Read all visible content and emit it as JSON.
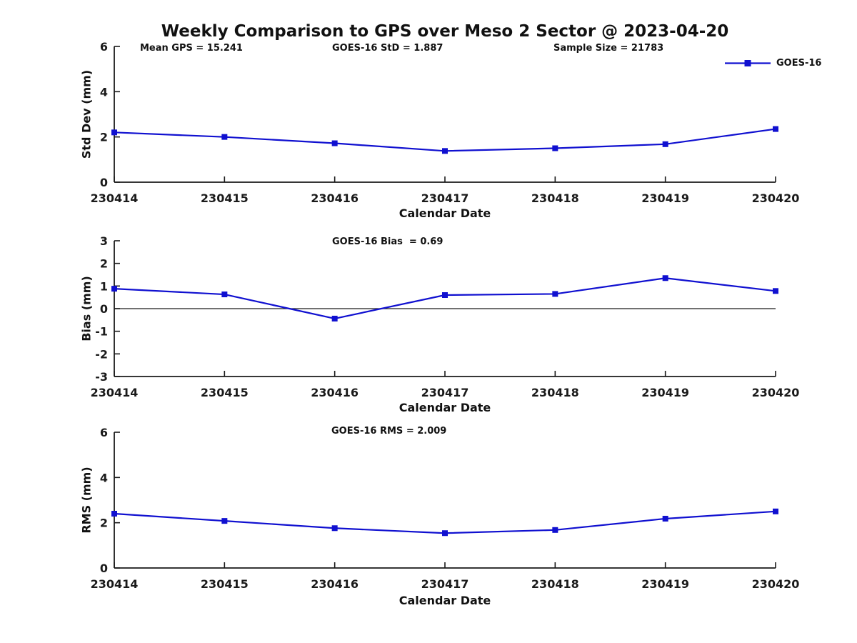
{
  "figure": {
    "title": "Weekly Comparison to GPS over Meso 2 Sector @ 2023-04-20"
  },
  "legend": {
    "label": "GOES-16",
    "position": "top-right-outside"
  },
  "colors": {
    "series": "#1010d0",
    "axis": "#1a1a1a",
    "text": "#1a1a1a",
    "zero_line": "#1a1a1a"
  },
  "chart_data": [
    {
      "id": "std-dev",
      "type": "line",
      "annotations": [
        "Mean GPS = 15.241",
        "GOES-16 StD = 1.887",
        "Sample Size = 21783"
      ],
      "x": [
        "230414",
        "230415",
        "230416",
        "230417",
        "230418",
        "230419",
        "230420"
      ],
      "series": [
        {
          "name": "GOES-16",
          "marker": "square",
          "values": [
            2.2,
            2.0,
            1.72,
            1.38,
            1.5,
            1.68,
            2.35
          ]
        }
      ],
      "xlabel": "Calendar Date",
      "ylabel": "Std Dev (mm)",
      "ylim": [
        0,
        6
      ],
      "yticks": [
        0,
        2,
        4,
        6
      ],
      "grid": false,
      "zero_line": false
    },
    {
      "id": "bias",
      "type": "line",
      "annotations": [
        "GOES-16 Bias  = 0.69"
      ],
      "x": [
        "230414",
        "230415",
        "230416",
        "230417",
        "230418",
        "230419",
        "230420"
      ],
      "series": [
        {
          "name": "GOES-16",
          "marker": "square",
          "values": [
            0.88,
            0.63,
            -0.44,
            0.6,
            0.65,
            1.35,
            0.78
          ]
        }
      ],
      "xlabel": "Calendar Date",
      "ylabel": "Bias (mm)",
      "ylim": [
        -3,
        3
      ],
      "yticks": [
        -3,
        -2,
        -1,
        0,
        1,
        2,
        3
      ],
      "grid": false,
      "zero_line": true
    },
    {
      "id": "rms",
      "type": "line",
      "annotations": [
        "GOES-16 RMS = 2.009"
      ],
      "x": [
        "230414",
        "230415",
        "230416",
        "230417",
        "230418",
        "230419",
        "230420"
      ],
      "series": [
        {
          "name": "GOES-16",
          "marker": "square",
          "values": [
            2.4,
            2.08,
            1.76,
            1.54,
            1.68,
            2.18,
            2.5
          ]
        }
      ],
      "xlabel": "Calendar Date",
      "ylabel": "RMS (mm)",
      "ylim": [
        0,
        6
      ],
      "yticks": [
        0,
        2,
        4,
        6
      ],
      "grid": false,
      "zero_line": false
    }
  ]
}
